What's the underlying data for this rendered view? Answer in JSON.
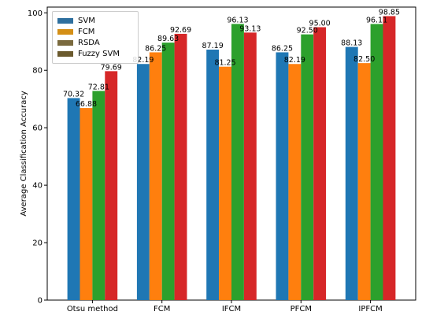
{
  "chart_data": {
    "type": "bar",
    "categories": [
      "Otsu method",
      "FCM",
      "IFCM",
      "PFCM",
      "IPFCM"
    ],
    "series": [
      {
        "name": "SVM",
        "values": [
          70.32,
          82.19,
          87.19,
          86.25,
          88.13
        ],
        "color": "#1f77b4"
      },
      {
        "name": "FCM",
        "values": [
          66.88,
          86.25,
          81.25,
          82.19,
          82.5
        ],
        "color": "#ff7f0e"
      },
      {
        "name": "RSDA",
        "values": [
          72.81,
          89.63,
          96.13,
          92.5,
          96.11
        ],
        "color": "#2ca02c"
      },
      {
        "name": "Fuzzy SVM",
        "values": [
          79.69,
          92.69,
          93.13,
          95.0,
          98.85
        ],
        "color": "#d62728"
      }
    ],
    "legend_labels": [
      "SVM",
      "FCM",
      "RSDA",
      "Fuzzy SVM"
    ],
    "legend_colors": [
      "#2e6f9e",
      "#d48f16",
      "#7a6a3e",
      "#6b5a2e"
    ],
    "value_labels": [
      [
        "70.32",
        "82.19",
        "87.19",
        "86.25",
        "88.13"
      ],
      [
        "66.88",
        "86.25",
        "81.25",
        "82.19",
        "82.50"
      ],
      [
        "72.81",
        "89.63",
        "96.13",
        "92.50",
        "96.11"
      ],
      [
        "79.69",
        "92.69",
        "93.13",
        "95.00",
        "98.85"
      ]
    ],
    "ylabel": "Average Classification Accuracy",
    "xlabel": "",
    "ylim": [
      0,
      102
    ],
    "yticks": [
      0,
      20,
      40,
      60,
      80,
      100
    ],
    "grid": false,
    "legend_position": "top-left"
  }
}
